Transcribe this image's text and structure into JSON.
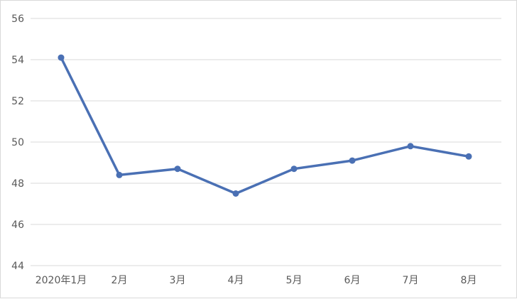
{
  "chart_data": {
    "type": "line",
    "title": "",
    "xlabel": "",
    "ylabel": "",
    "categories": [
      "2020年1月",
      "2月",
      "3月",
      "4月",
      "5月",
      "6月",
      "7月",
      "8月"
    ],
    "series": [
      {
        "values": [
          54.1,
          48.4,
          48.7,
          47.5,
          48.7,
          49.1,
          49.8,
          49.3
        ]
      }
    ],
    "ylim": [
      44,
      56
    ],
    "yticks": [
      44,
      46,
      48,
      50,
      52,
      54,
      56
    ],
    "grid": true,
    "legend": "none",
    "colors": {
      "line": "#4a70b4",
      "grid": "#d9d9d9",
      "text": "#595959"
    }
  }
}
